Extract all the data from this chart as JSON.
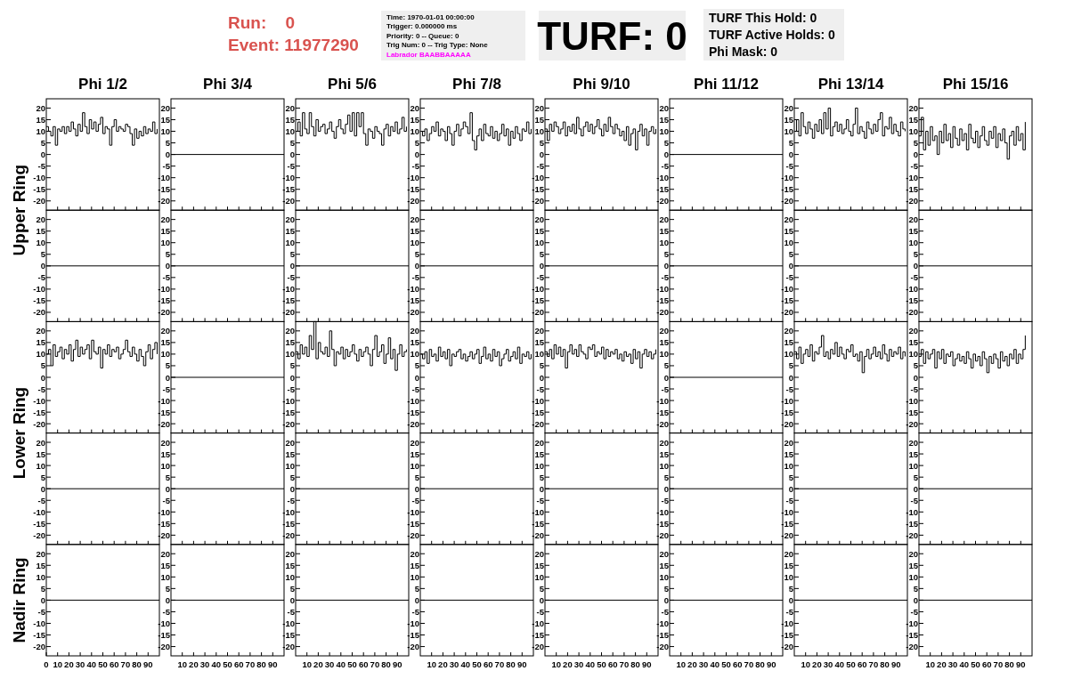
{
  "chart_data": [
    {
      "type": "step",
      "title": "Phi 1/2",
      "ylabel": "Upper Ring",
      "annotations": [
        "Run:    0",
        "Event: 11977290",
        "Time: 1970-01-01 00:00:00",
        "Trigger: 0.000000 ms",
        "Priority: 0 -- Queue: 0",
        "Trig Num: 0 -- Trig Type: None",
        "Labrador BAABBAAAAA",
        "TURF: 0",
        "TURF This Hold: 0",
        "TURF Active Holds: 0",
        "Phi Mask: 0"
      ],
      "color": "#000000",
      "x": [
        0,
        2,
        4,
        6,
        8,
        10,
        12,
        14,
        16,
        18,
        20,
        22,
        24,
        26,
        28,
        30,
        32,
        34,
        36,
        38,
        40,
        42,
        44,
        46,
        48,
        50,
        52,
        54,
        56,
        58,
        60,
        62,
        64,
        66,
        68,
        70,
        72,
        74,
        76,
        78,
        80,
        82,
        84,
        86,
        88,
        90,
        92,
        94,
        96,
        98
      ],
      "values": [
        12,
        10,
        8,
        12,
        4,
        11,
        10,
        12,
        9,
        12,
        10,
        14,
        11,
        8,
        13,
        10,
        18,
        12,
        9,
        15,
        11,
        14,
        10,
        13,
        16,
        9,
        12,
        11,
        4,
        12,
        15,
        10,
        12,
        11,
        10,
        13,
        12,
        9,
        4,
        11,
        7,
        10,
        8,
        12,
        9,
        11,
        10,
        14,
        9,
        11
      ],
      "xlim": [
        0,
        100
      ],
      "ylim": [
        -24,
        24
      ],
      "xticks": [
        10,
        20,
        30,
        40,
        50,
        60,
        70,
        80,
        90
      ],
      "yticks": [
        -20,
        -15,
        -10,
        -5,
        0,
        5,
        10,
        15,
        20
      ],
      "tick_labels": "y"
    },
    {
      "type": "line",
      "title": "Phi 3/4",
      "color": "#000000",
      "x": [
        0,
        100
      ],
      "values": [
        0,
        0
      ],
      "xlim": [
        0,
        100
      ],
      "ylim": [
        -24,
        24
      ],
      "xticks": [
        10,
        20,
        30,
        40,
        50,
        60,
        70,
        80,
        90
      ],
      "yticks": [
        -20,
        -15,
        -10,
        -5,
        0,
        5,
        10,
        15,
        20
      ],
      "tick_labels": "y"
    },
    {
      "type": "step",
      "title": "Phi 5/6",
      "color": "#000000",
      "x": [
        0,
        2,
        4,
        6,
        8,
        10,
        12,
        14,
        16,
        18,
        20,
        22,
        24,
        26,
        28,
        30,
        32,
        34,
        36,
        38,
        40,
        42,
        44,
        46,
        48,
        50,
        52,
        54,
        56,
        58,
        60,
        62,
        64,
        66,
        68,
        70,
        72,
        74,
        76,
        78,
        80,
        82,
        84,
        86,
        88,
        90,
        92,
        94,
        96,
        98
      ],
      "values": [
        10,
        14,
        8,
        18,
        11,
        9,
        18,
        12,
        8,
        15,
        10,
        12,
        13,
        9,
        11,
        14,
        10,
        7,
        12,
        15,
        11,
        9,
        13,
        17,
        10,
        18,
        8,
        18,
        12,
        18,
        9,
        4,
        11,
        10,
        7,
        12,
        10,
        9,
        4,
        11,
        13,
        8,
        12,
        10,
        14,
        9,
        11,
        16,
        10,
        12
      ],
      "xlim": [
        0,
        100
      ],
      "ylim": [
        -24,
        24
      ],
      "xticks": [
        10,
        20,
        30,
        40,
        50,
        60,
        70,
        80,
        90
      ],
      "yticks": [
        -20,
        -15,
        -10,
        -5,
        0,
        5,
        10,
        15,
        20
      ],
      "tick_labels": "y"
    },
    {
      "type": "step",
      "title": "Phi 7/8",
      "color": "#000000",
      "x": [
        0,
        2,
        4,
        6,
        8,
        10,
        12,
        14,
        16,
        18,
        20,
        22,
        24,
        26,
        28,
        30,
        32,
        34,
        36,
        38,
        40,
        42,
        44,
        46,
        48,
        50,
        52,
        54,
        56,
        58,
        60,
        62,
        64,
        66,
        68,
        70,
        72,
        74,
        76,
        78,
        80,
        82,
        84,
        86,
        88,
        90,
        92,
        94,
        96,
        98
      ],
      "values": [
        10,
        8,
        11,
        6,
        9,
        12,
        10,
        14,
        8,
        11,
        10,
        6,
        12,
        9,
        4,
        10,
        13,
        8,
        11,
        14,
        12,
        9,
        18,
        6,
        2,
        8,
        11,
        6,
        13,
        9,
        8,
        12,
        7,
        10,
        6,
        9,
        13,
        8,
        11,
        4,
        10,
        7,
        12,
        9,
        6,
        11,
        10,
        14,
        9,
        11
      ],
      "xlim": [
        0,
        100
      ],
      "ylim": [
        -24,
        24
      ],
      "xticks": [
        10,
        20,
        30,
        40,
        50,
        60,
        70,
        80,
        90
      ],
      "yticks": [
        -20,
        -15,
        -10,
        -5,
        0,
        5,
        10,
        15,
        20
      ],
      "tick_labels": "y"
    },
    {
      "type": "step",
      "title": "Phi 9/10",
      "color": "#000000",
      "x": [
        0,
        2,
        4,
        6,
        8,
        10,
        12,
        14,
        16,
        18,
        20,
        22,
        24,
        26,
        28,
        30,
        32,
        34,
        36,
        38,
        40,
        42,
        44,
        46,
        48,
        50,
        52,
        54,
        56,
        58,
        60,
        62,
        64,
        66,
        68,
        70,
        72,
        74,
        76,
        78,
        80,
        82,
        84,
        86,
        88,
        90,
        92,
        94,
        96,
        98
      ],
      "values": [
        11,
        6,
        13,
        10,
        14,
        12,
        9,
        11,
        14,
        8,
        12,
        10,
        13,
        9,
        16,
        11,
        8,
        12,
        14,
        10,
        13,
        9,
        12,
        15,
        11,
        8,
        13,
        10,
        16,
        12,
        9,
        13,
        11,
        8,
        10,
        6,
        12,
        4,
        9,
        11,
        2,
        10,
        13,
        8,
        11,
        4,
        10,
        12,
        9,
        11
      ],
      "xlim": [
        0,
        100
      ],
      "ylim": [
        -24,
        24
      ],
      "xticks": [
        10,
        20,
        30,
        40,
        50,
        60,
        70,
        80,
        90
      ],
      "yticks": [
        -20,
        -15,
        -10,
        -5,
        0,
        5,
        10,
        15,
        20
      ],
      "tick_labels": "y"
    },
    {
      "type": "line",
      "title": "Phi 11/12",
      "color": "#000000",
      "x": [
        0,
        100
      ],
      "values": [
        0,
        0
      ],
      "xlim": [
        0,
        100
      ],
      "ylim": [
        -24,
        24
      ],
      "xticks": [
        10,
        20,
        30,
        40,
        50,
        60,
        70,
        80,
        90
      ],
      "yticks": [
        -20,
        -15,
        -10,
        -5,
        0,
        5,
        10,
        15,
        20
      ],
      "tick_labels": "y"
    },
    {
      "type": "step",
      "title": "Phi 13/14",
      "color": "#000000",
      "x": [
        0,
        2,
        4,
        6,
        8,
        10,
        12,
        14,
        16,
        18,
        20,
        22,
        24,
        26,
        28,
        30,
        32,
        34,
        36,
        38,
        40,
        42,
        44,
        46,
        48,
        50,
        52,
        54,
        56,
        58,
        60,
        62,
        64,
        66,
        68,
        70,
        72,
        74,
        76,
        78,
        80,
        82,
        84,
        86,
        88,
        90,
        92,
        94,
        96,
        98
      ],
      "values": [
        10,
        15,
        8,
        18,
        12,
        9,
        14,
        11,
        7,
        13,
        10,
        15,
        9,
        18,
        11,
        20,
        8,
        12,
        14,
        10,
        13,
        9,
        11,
        15,
        10,
        8,
        13,
        20,
        9,
        12,
        10,
        7,
        14,
        11,
        9,
        13,
        10,
        15,
        18,
        8,
        12,
        11,
        16,
        9,
        13,
        10,
        8,
        14,
        11,
        10
      ],
      "xlim": [
        0,
        100
      ],
      "ylim": [
        -24,
        24
      ],
      "xticks": [
        10,
        20,
        30,
        40,
        50,
        60,
        70,
        80,
        90
      ],
      "yticks": [
        -20,
        -15,
        -10,
        -5,
        0,
        5,
        10,
        15,
        20
      ],
      "tick_labels": "y"
    },
    {
      "type": "step",
      "title": "Phi 15/16",
      "color": "#000000",
      "x": [
        0,
        2,
        4,
        6,
        8,
        10,
        12,
        14,
        16,
        18,
        20,
        22,
        24,
        26,
        28,
        30,
        32,
        34,
        36,
        38,
        40,
        42,
        44,
        46,
        48,
        50,
        52,
        54,
        56,
        58,
        60,
        62,
        64,
        66,
        68,
        70,
        72,
        74,
        76,
        78,
        80,
        82,
        84,
        86,
        88,
        90,
        92,
        94
      ],
      "values": [
        8,
        16,
        2,
        10,
        4,
        12,
        6,
        8,
        0,
        10,
        5,
        13,
        6,
        9,
        3,
        12,
        7,
        4,
        11,
        6,
        9,
        2,
        13,
        7,
        5,
        10,
        3,
        8,
        12,
        6,
        4,
        10,
        7,
        12,
        3,
        9,
        6,
        11,
        5,
        -2,
        8,
        10,
        4,
        12,
        6,
        9,
        2,
        14
      ],
      "xlim": [
        0,
        100
      ],
      "ylim": [
        -24,
        24
      ],
      "xticks": [
        10,
        20,
        30,
        40,
        50,
        60,
        70,
        80,
        90
      ],
      "yticks": [
        -20,
        -15,
        -10,
        -5,
        0,
        5,
        10,
        15,
        20
      ],
      "tick_labels": "y"
    },
    {
      "type": "line",
      "color": "#000000",
      "x": [
        0,
        100
      ],
      "values": [
        0,
        0
      ],
      "xlim": [
        0,
        100
      ],
      "ylim": [
        -24,
        24
      ],
      "xticks": [
        10,
        20,
        30,
        40,
        50,
        60,
        70,
        80,
        90
      ],
      "yticks": [
        -20,
        -15,
        -10,
        -5,
        0,
        5,
        10,
        15,
        20
      ],
      "tick_labels": "y"
    },
    {
      "type": "line",
      "color": "#000000",
      "x": [
        0,
        100
      ],
      "values": [
        0,
        0
      ],
      "xlim": [
        0,
        100
      ],
      "ylim": [
        -24,
        24
      ],
      "xticks": [
        10,
        20,
        30,
        40,
        50,
        60,
        70,
        80,
        90
      ],
      "yticks": [
        -20,
        -15,
        -10,
        -5,
        0,
        5,
        10,
        15,
        20
      ],
      "tick_labels": "y"
    },
    {
      "type": "line",
      "color": "#000000",
      "x": [
        0,
        100
      ],
      "values": [
        0,
        0
      ],
      "xlim": [
        0,
        100
      ],
      "ylim": [
        -24,
        24
      ],
      "xticks": [
        10,
        20,
        30,
        40,
        50,
        60,
        70,
        80,
        90
      ],
      "yticks": [
        -20,
        -15,
        -10,
        -5,
        0,
        5,
        10,
        15,
        20
      ],
      "tick_labels": "y"
    },
    {
      "type": "line",
      "color": "#000000",
      "x": [
        0,
        100
      ],
      "values": [
        0,
        0
      ],
      "xlim": [
        0,
        100
      ],
      "ylim": [
        -24,
        24
      ],
      "xticks": [
        10,
        20,
        30,
        40,
        50,
        60,
        70,
        80,
        90
      ],
      "yticks": [
        -20,
        -15,
        -10,
        -5,
        0,
        5,
        10,
        15,
        20
      ],
      "tick_labels": "y"
    },
    {
      "type": "line",
      "color": "#000000",
      "x": [
        0,
        100
      ],
      "values": [
        0,
        0
      ],
      "xlim": [
        0,
        100
      ],
      "ylim": [
        -24,
        24
      ],
      "xticks": [
        10,
        20,
        30,
        40,
        50,
        60,
        70,
        80,
        90
      ],
      "yticks": [
        -20,
        -15,
        -10,
        -5,
        0,
        5,
        10,
        15,
        20
      ],
      "tick_labels": "y"
    },
    {
      "type": "line",
      "color": "#000000",
      "x": [
        0,
        100
      ],
      "values": [
        0,
        0
      ],
      "xlim": [
        0,
        100
      ],
      "ylim": [
        -24,
        24
      ],
      "xticks": [
        10,
        20,
        30,
        40,
        50,
        60,
        70,
        80,
        90
      ],
      "yticks": [
        -20,
        -15,
        -10,
        -5,
        0,
        5,
        10,
        15,
        20
      ],
      "tick_labels": "y"
    },
    {
      "type": "line",
      "color": "#000000",
      "x": [
        0,
        100
      ],
      "values": [
        0,
        0
      ],
      "xlim": [
        0,
        100
      ],
      "ylim": [
        -24,
        24
      ],
      "xticks": [
        10,
        20,
        30,
        40,
        50,
        60,
        70,
        80,
        90
      ],
      "yticks": [
        -20,
        -15,
        -10,
        -5,
        0,
        5,
        10,
        15,
        20
      ],
      "tick_labels": "y"
    },
    {
      "type": "line",
      "color": "#000000",
      "x": [
        0,
        100
      ],
      "values": [
        0,
        0
      ],
      "xlim": [
        0,
        100
      ],
      "ylim": [
        -24,
        24
      ],
      "xticks": [
        10,
        20,
        30,
        40,
        50,
        60,
        70,
        80,
        90
      ],
      "yticks": [
        -20,
        -15,
        -10,
        -5,
        0,
        5,
        10,
        15,
        20
      ],
      "tick_labels": "y"
    },
    {
      "type": "step",
      "ylabel": "Lower Ring",
      "color": "#000000",
      "x": [
        0,
        2,
        4,
        6,
        8,
        10,
        12,
        14,
        16,
        18,
        20,
        22,
        24,
        26,
        28,
        30,
        32,
        34,
        36,
        38,
        40,
        42,
        44,
        46,
        48,
        50,
        52,
        54,
        56,
        58,
        60,
        62,
        64,
        66,
        68,
        70,
        72,
        74,
        76,
        78,
        80,
        82,
        84,
        86,
        88,
        90,
        92,
        94,
        96,
        98
      ],
      "values": [
        10,
        12,
        5,
        14,
        9,
        11,
        13,
        8,
        12,
        10,
        14,
        7,
        12,
        16,
        9,
        13,
        10,
        12,
        14,
        8,
        16,
        11,
        10,
        13,
        4,
        12,
        10,
        14,
        9,
        12,
        11,
        13,
        8,
        10,
        12,
        16,
        11,
        9,
        13,
        10,
        7,
        12,
        9,
        5,
        11,
        14,
        8,
        12,
        15,
        10
      ],
      "xlim": [
        0,
        100
      ],
      "ylim": [
        -24,
        24
      ],
      "xticks": [
        10,
        20,
        30,
        40,
        50,
        60,
        70,
        80,
        90
      ],
      "yticks": [
        -20,
        -15,
        -10,
        -5,
        0,
        5,
        10,
        15,
        20
      ],
      "tick_labels": "y"
    },
    {
      "type": "line",
      "color": "#000000",
      "x": [
        0,
        100
      ],
      "values": [
        0,
        0
      ],
      "xlim": [
        0,
        100
      ],
      "ylim": [
        -24,
        24
      ],
      "xticks": [
        10,
        20,
        30,
        40,
        50,
        60,
        70,
        80,
        90
      ],
      "yticks": [
        -20,
        -15,
        -10,
        -5,
        0,
        5,
        10,
        15,
        20
      ],
      "tick_labels": "y"
    },
    {
      "type": "step",
      "color": "#000000",
      "x": [
        0,
        2,
        4,
        6,
        8,
        10,
        12,
        14,
        16,
        18,
        20,
        22,
        24,
        26,
        28,
        30,
        32,
        34,
        36,
        38,
        40,
        42,
        44,
        46,
        48,
        50,
        52,
        54,
        56,
        58,
        60,
        62,
        64,
        66,
        68,
        70,
        72,
        74,
        76,
        78,
        80,
        82,
        84,
        86,
        88,
        90,
        92,
        94,
        96,
        98
      ],
      "values": [
        11,
        8,
        14,
        10,
        13,
        9,
        18,
        12,
        24,
        8,
        15,
        11,
        10,
        13,
        9,
        20,
        12,
        5,
        11,
        10,
        13,
        8,
        12,
        9,
        11,
        14,
        10,
        7,
        12,
        9,
        11,
        13,
        10,
        5,
        12,
        18,
        9,
        11,
        14,
        6,
        10,
        17,
        8,
        12,
        3,
        10,
        14,
        9,
        11,
        12
      ],
      "xlim": [
        0,
        100
      ],
      "ylim": [
        -24,
        24
      ],
      "xticks": [
        10,
        20,
        30,
        40,
        50,
        60,
        70,
        80,
        90
      ],
      "yticks": [
        -20,
        -15,
        -10,
        -5,
        0,
        5,
        10,
        15,
        20
      ],
      "tick_labels": "y"
    },
    {
      "type": "step",
      "color": "#000000",
      "x": [
        0,
        2,
        4,
        6,
        8,
        10,
        12,
        14,
        16,
        18,
        20,
        22,
        24,
        26,
        28,
        30,
        32,
        34,
        36,
        38,
        40,
        42,
        44,
        46,
        48,
        50,
        52,
        54,
        56,
        58,
        60,
        62,
        64,
        66,
        68,
        70,
        72,
        74,
        76,
        78,
        80,
        82,
        84,
        86,
        88,
        90,
        92,
        94,
        96,
        98
      ],
      "values": [
        10,
        8,
        11,
        6,
        12,
        9,
        10,
        7,
        13,
        9,
        11,
        8,
        12,
        5,
        10,
        9,
        11,
        12,
        8,
        10,
        7,
        9,
        11,
        8,
        10,
        12,
        6,
        9,
        13,
        8,
        10,
        7,
        12,
        9,
        11,
        5,
        8,
        10,
        12,
        7,
        9,
        11,
        8,
        13,
        6,
        10,
        9,
        11,
        8,
        10
      ],
      "xlim": [
        0,
        100
      ],
      "ylim": [
        -24,
        24
      ],
      "xticks": [
        10,
        20,
        30,
        40,
        50,
        60,
        70,
        80,
        90
      ],
      "yticks": [
        -20,
        -15,
        -10,
        -5,
        0,
        5,
        10,
        15,
        20
      ],
      "tick_labels": "y"
    },
    {
      "type": "step",
      "color": "#000000",
      "x": [
        0,
        2,
        4,
        6,
        8,
        10,
        12,
        14,
        16,
        18,
        20,
        22,
        24,
        26,
        28,
        30,
        32,
        34,
        36,
        38,
        40,
        42,
        44,
        46,
        48,
        50,
        52,
        54,
        56,
        58,
        60,
        62,
        64,
        66,
        68,
        70,
        72,
        74,
        76,
        78,
        80,
        82,
        84,
        86,
        88,
        90,
        92,
        94,
        96,
        98
      ],
      "values": [
        11,
        9,
        12,
        8,
        14,
        10,
        13,
        9,
        12,
        4,
        11,
        14,
        10,
        12,
        9,
        14,
        11,
        10,
        8,
        13,
        12,
        14,
        9,
        11,
        10,
        13,
        8,
        12,
        9,
        11,
        10,
        12,
        8,
        10,
        7,
        11,
        9,
        10,
        6,
        12,
        8,
        11,
        4,
        10,
        12,
        9,
        11,
        8,
        10,
        12
      ],
      "xlim": [
        0,
        100
      ],
      "ylim": [
        -24,
        24
      ],
      "xticks": [
        10,
        20,
        30,
        40,
        50,
        60,
        70,
        80,
        90
      ],
      "yticks": [
        -20,
        -15,
        -10,
        -5,
        0,
        5,
        10,
        15,
        20
      ],
      "tick_labels": "y"
    },
    {
      "type": "line",
      "color": "#000000",
      "x": [
        0,
        100
      ],
      "values": [
        0,
        0
      ],
      "xlim": [
        0,
        100
      ],
      "ylim": [
        -24,
        24
      ],
      "xticks": [
        10,
        20,
        30,
        40,
        50,
        60,
        70,
        80,
        90
      ],
      "yticks": [
        -20,
        -15,
        -10,
        -5,
        0,
        5,
        10,
        15,
        20
      ],
      "tick_labels": "y"
    },
    {
      "type": "step",
      "color": "#000000",
      "x": [
        0,
        2,
        4,
        6,
        8,
        10,
        12,
        14,
        16,
        18,
        20,
        22,
        24,
        26,
        28,
        30,
        32,
        34,
        36,
        38,
        40,
        42,
        44,
        46,
        48,
        50,
        52,
        54,
        56,
        58,
        60,
        62,
        64,
        66,
        68,
        70,
        72,
        74,
        76,
        78,
        80,
        82,
        84,
        86,
        88,
        90,
        92,
        94,
        96,
        98
      ],
      "values": [
        11,
        8,
        13,
        6,
        10,
        12,
        9,
        14,
        7,
        11,
        10,
        13,
        18,
        9,
        11,
        8,
        12,
        10,
        15,
        9,
        13,
        10,
        8,
        12,
        11,
        14,
        9,
        10,
        7,
        11,
        2,
        9,
        12,
        8,
        10,
        13,
        9,
        11,
        8,
        14,
        10,
        7,
        12,
        9,
        11,
        10,
        13,
        8,
        11,
        9
      ],
      "xlim": [
        0,
        100
      ],
      "ylim": [
        -24,
        24
      ],
      "xticks": [
        10,
        20,
        30,
        40,
        50,
        60,
        70,
        80,
        90
      ],
      "yticks": [
        -20,
        -15,
        -10,
        -5,
        0,
        5,
        10,
        15,
        20
      ],
      "tick_labels": "y"
    },
    {
      "type": "step",
      "color": "#000000",
      "x": [
        0,
        2,
        4,
        6,
        8,
        10,
        12,
        14,
        16,
        18,
        20,
        22,
        24,
        26,
        28,
        30,
        32,
        34,
        36,
        38,
        40,
        42,
        44,
        46,
        48,
        50,
        52,
        54,
        56,
        58,
        60,
        62,
        64,
        66,
        68,
        70,
        72,
        74,
        76,
        78,
        80,
        82,
        84,
        86,
        88,
        90,
        92,
        94
      ],
      "values": [
        9,
        12,
        6,
        11,
        8,
        10,
        12,
        4,
        11,
        8,
        12,
        6,
        10,
        9,
        11,
        5,
        8,
        10,
        7,
        9,
        6,
        11,
        8,
        4,
        10,
        7,
        9,
        5,
        11,
        8,
        2,
        9,
        6,
        10,
        8,
        4,
        11,
        7,
        9,
        5,
        10,
        8,
        12,
        6,
        10,
        8,
        12,
        18
      ],
      "xlim": [
        0,
        100
      ],
      "ylim": [
        -24,
        24
      ],
      "xticks": [
        10,
        20,
        30,
        40,
        50,
        60,
        70,
        80,
        90
      ],
      "yticks": [
        -20,
        -15,
        -10,
        -5,
        0,
        5,
        10,
        15,
        20
      ],
      "tick_labels": "y"
    },
    {
      "type": "line",
      "color": "#000000",
      "x": [
        0,
        100
      ],
      "values": [
        0,
        0
      ],
      "xlim": [
        0,
        100
      ],
      "ylim": [
        -24,
        24
      ],
      "xticks": [
        10,
        20,
        30,
        40,
        50,
        60,
        70,
        80,
        90
      ],
      "yticks": [
        -20,
        -15,
        -10,
        -5,
        0,
        5,
        10,
        15,
        20
      ],
      "tick_labels": "y"
    },
    {
      "type": "line",
      "color": "#000000",
      "x": [
        0,
        100
      ],
      "values": [
        0,
        0
      ],
      "xlim": [
        0,
        100
      ],
      "ylim": [
        -24,
        24
      ],
      "xticks": [
        10,
        20,
        30,
        40,
        50,
        60,
        70,
        80,
        90
      ],
      "yticks": [
        -20,
        -15,
        -10,
        -5,
        0,
        5,
        10,
        15,
        20
      ],
      "tick_labels": "y"
    },
    {
      "type": "line",
      "color": "#000000",
      "x": [
        0,
        100
      ],
      "values": [
        0,
        0
      ],
      "xlim": [
        0,
        100
      ],
      "ylim": [
        -24,
        24
      ],
      "xticks": [
        10,
        20,
        30,
        40,
        50,
        60,
        70,
        80,
        90
      ],
      "yticks": [
        -20,
        -15,
        -10,
        -5,
        0,
        5,
        10,
        15,
        20
      ],
      "tick_labels": "y"
    },
    {
      "type": "line",
      "color": "#000000",
      "x": [
        0,
        100
      ],
      "values": [
        0,
        0
      ],
      "xlim": [
        0,
        100
      ],
      "ylim": [
        -24,
        24
      ],
      "xticks": [
        10,
        20,
        30,
        40,
        50,
        60,
        70,
        80,
        90
      ],
      "yticks": [
        -20,
        -15,
        -10,
        -5,
        0,
        5,
        10,
        15,
        20
      ],
      "tick_labels": "y"
    },
    {
      "type": "line",
      "color": "#000000",
      "x": [
        0,
        100
      ],
      "values": [
        0,
        0
      ],
      "xlim": [
        0,
        100
      ],
      "ylim": [
        -24,
        24
      ],
      "xticks": [
        10,
        20,
        30,
        40,
        50,
        60,
        70,
        80,
        90
      ],
      "yticks": [
        -20,
        -15,
        -10,
        -5,
        0,
        5,
        10,
        15,
        20
      ],
      "tick_labels": "y"
    },
    {
      "type": "line",
      "color": "#000000",
      "x": [
        0,
        100
      ],
      "values": [
        0,
        0
      ],
      "xlim": [
        0,
        100
      ],
      "ylim": [
        -24,
        24
      ],
      "xticks": [
        10,
        20,
        30,
        40,
        50,
        60,
        70,
        80,
        90
      ],
      "yticks": [
        -20,
        -15,
        -10,
        -5,
        0,
        5,
        10,
        15,
        20
      ],
      "tick_labels": "y"
    },
    {
      "type": "line",
      "color": "#000000",
      "x": [
        0,
        100
      ],
      "values": [
        0,
        0
      ],
      "xlim": [
        0,
        100
      ],
      "ylim": [
        -24,
        24
      ],
      "xticks": [
        10,
        20,
        30,
        40,
        50,
        60,
        70,
        80,
        90
      ],
      "yticks": [
        -20,
        -15,
        -10,
        -5,
        0,
        5,
        10,
        15,
        20
      ],
      "tick_labels": "y"
    },
    {
      "type": "line",
      "color": "#000000",
      "x": [
        0,
        100
      ],
      "values": [
        0,
        0
      ],
      "xlim": [
        0,
        100
      ],
      "ylim": [
        -24,
        24
      ],
      "xticks": [
        10,
        20,
        30,
        40,
        50,
        60,
        70,
        80,
        90
      ],
      "yticks": [
        -20,
        -15,
        -10,
        -5,
        0,
        5,
        10,
        15,
        20
      ],
      "tick_labels": "y"
    },
    {
      "type": "line",
      "ylabel": "Nadir Ring",
      "color": "#000000",
      "x": [
        0,
        100
      ],
      "values": [
        0,
        0
      ],
      "xlim": [
        0,
        100
      ],
      "ylim": [
        -24,
        24
      ],
      "xticks": [
        0,
        10,
        20,
        30,
        40,
        50,
        60,
        70,
        80,
        90
      ],
      "yticks": [
        -20,
        -15,
        -10,
        -5,
        0,
        5,
        10,
        15,
        20
      ]
    },
    {
      "type": "line",
      "color": "#000000",
      "x": [
        0,
        100
      ],
      "values": [
        0,
        0
      ],
      "xlim": [
        0,
        100
      ],
      "ylim": [
        -24,
        24
      ],
      "xticks": [
        10,
        20,
        30,
        40,
        50,
        60,
        70,
        80,
        90
      ],
      "yticks": [
        -20,
        -15,
        -10,
        -5,
        0,
        5,
        10,
        15,
        20
      ]
    },
    {
      "type": "line",
      "color": "#000000",
      "x": [
        0,
        100
      ],
      "values": [
        0,
        0
      ],
      "xlim": [
        0,
        100
      ],
      "ylim": [
        -24,
        24
      ],
      "xticks": [
        10,
        20,
        30,
        40,
        50,
        60,
        70,
        80,
        90
      ],
      "yticks": [
        -20,
        -15,
        -10,
        -5,
        0,
        5,
        10,
        15,
        20
      ]
    },
    {
      "type": "line",
      "color": "#000000",
      "x": [
        0,
        100
      ],
      "values": [
        0,
        0
      ],
      "xlim": [
        0,
        100
      ],
      "ylim": [
        -24,
        24
      ],
      "xticks": [
        10,
        20,
        30,
        40,
        50,
        60,
        70,
        80,
        90
      ],
      "yticks": [
        -20,
        -15,
        -10,
        -5,
        0,
        5,
        10,
        15,
        20
      ]
    },
    {
      "type": "line",
      "color": "#000000",
      "x": [
        0,
        100
      ],
      "values": [
        0,
        0
      ],
      "xlim": [
        0,
        100
      ],
      "ylim": [
        -24,
        24
      ],
      "xticks": [
        10,
        20,
        30,
        40,
        50,
        60,
        70,
        80,
        90
      ],
      "yticks": [
        -20,
        -15,
        -10,
        -5,
        0,
        5,
        10,
        15,
        20
      ]
    },
    {
      "type": "line",
      "color": "#000000",
      "x": [
        0,
        100
      ],
      "values": [
        0,
        0
      ],
      "xlim": [
        0,
        100
      ],
      "ylim": [
        -24,
        24
      ],
      "xticks": [
        10,
        20,
        30,
        40,
        50,
        60,
        70,
        80,
        90
      ],
      "yticks": [
        -20,
        -15,
        -10,
        -5,
        0,
        5,
        10,
        15,
        20
      ]
    },
    {
      "type": "line",
      "color": "#000000",
      "x": [
        0,
        100
      ],
      "values": [
        0,
        0
      ],
      "xlim": [
        0,
        100
      ],
      "ylim": [
        -24,
        24
      ],
      "xticks": [
        10,
        20,
        30,
        40,
        50,
        60,
        70,
        80,
        90
      ],
      "yticks": [
        -20,
        -15,
        -10,
        -5,
        0,
        5,
        10,
        15,
        20
      ]
    },
    {
      "type": "line",
      "color": "#000000",
      "x": [
        0,
        100
      ],
      "values": [
        0,
        0
      ],
      "xlim": [
        0,
        100
      ],
      "ylim": [
        -24,
        24
      ],
      "xticks": [
        10,
        20,
        30,
        40,
        50,
        60,
        70,
        80,
        90
      ],
      "yticks": [
        -20,
        -15,
        -10,
        -5,
        0,
        5,
        10,
        15,
        20
      ]
    }
  ]
}
